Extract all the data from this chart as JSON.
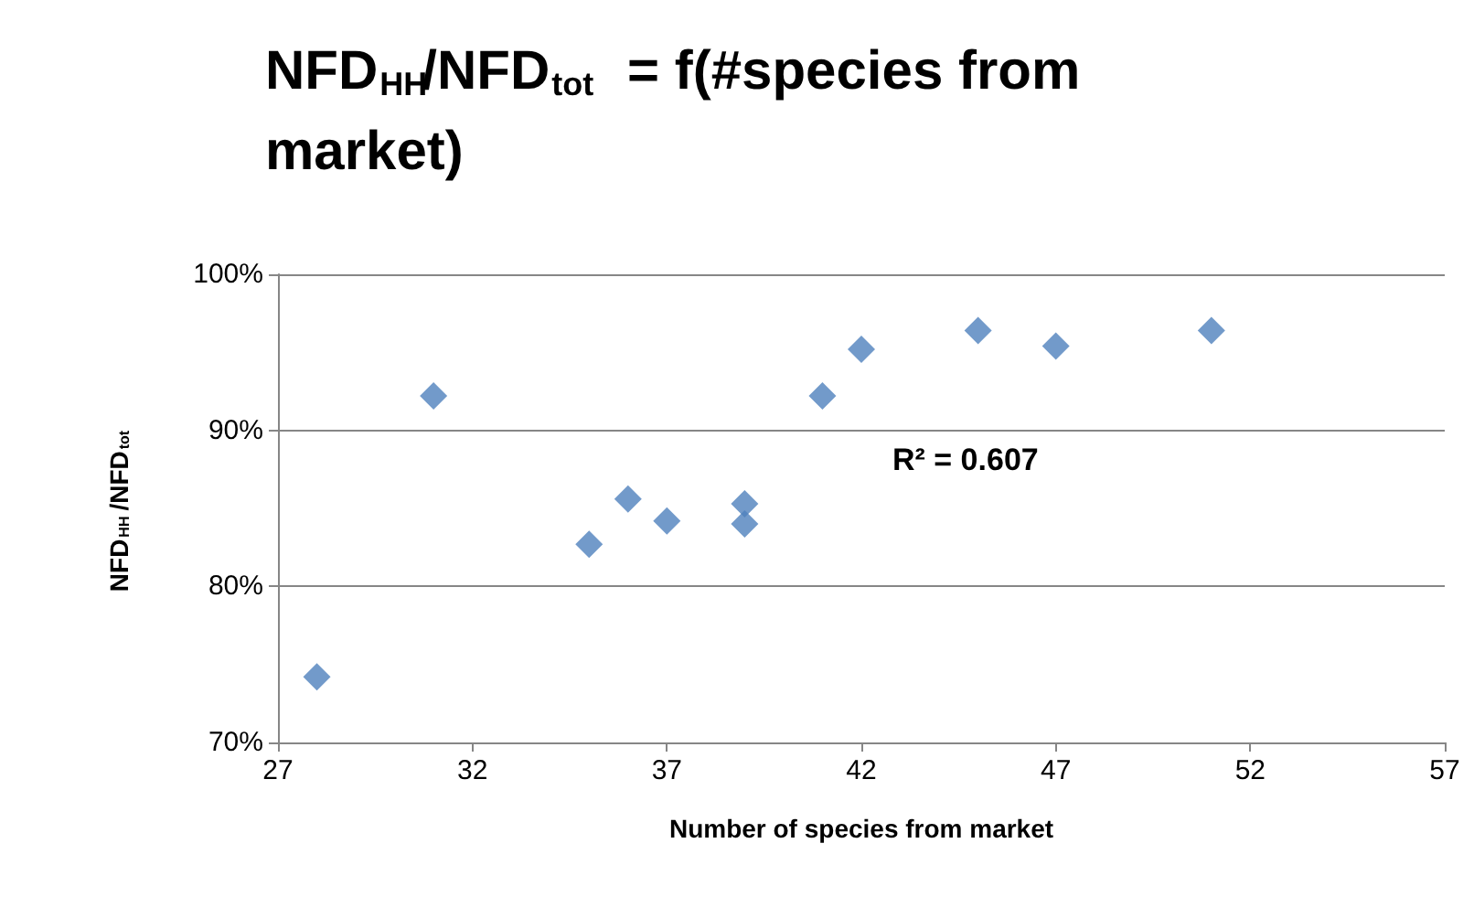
{
  "chart_data": {
    "type": "scatter",
    "title": "NFD$_{HH}$/NFD$_{tot}$ = f(#species from market)",
    "xlabel": "Number of species from market",
    "ylabel": "NFD$_{HH}$/NFD$_{tot}$",
    "x": [
      28,
      31,
      35,
      36,
      37,
      39,
      39,
      41,
      42,
      45,
      47,
      51
    ],
    "series": [
      {
        "color": "#4f81bd",
        "values": [
          74.2,
          92.2,
          82.7,
          85.6,
          84.2,
          85.3,
          84.0,
          92.2,
          95.2,
          96.4,
          95.4,
          96.4
        ]
      }
    ],
    "xlim": [
      27,
      57
    ],
    "xticks": [
      27,
      32,
      37,
      42,
      47,
      52,
      57
    ],
    "ylim": [
      70,
      100
    ],
    "yticks": [
      {
        "value": 70,
        "label": "70%"
      },
      {
        "value": 80,
        "label": "80%"
      },
      {
        "value": 90,
        "label": "90%"
      },
      {
        "value": 100,
        "label": "100%"
      }
    ],
    "annotations": [
      "R² = 0.607"
    ],
    "grid": "y",
    "marker": "diamond"
  }
}
